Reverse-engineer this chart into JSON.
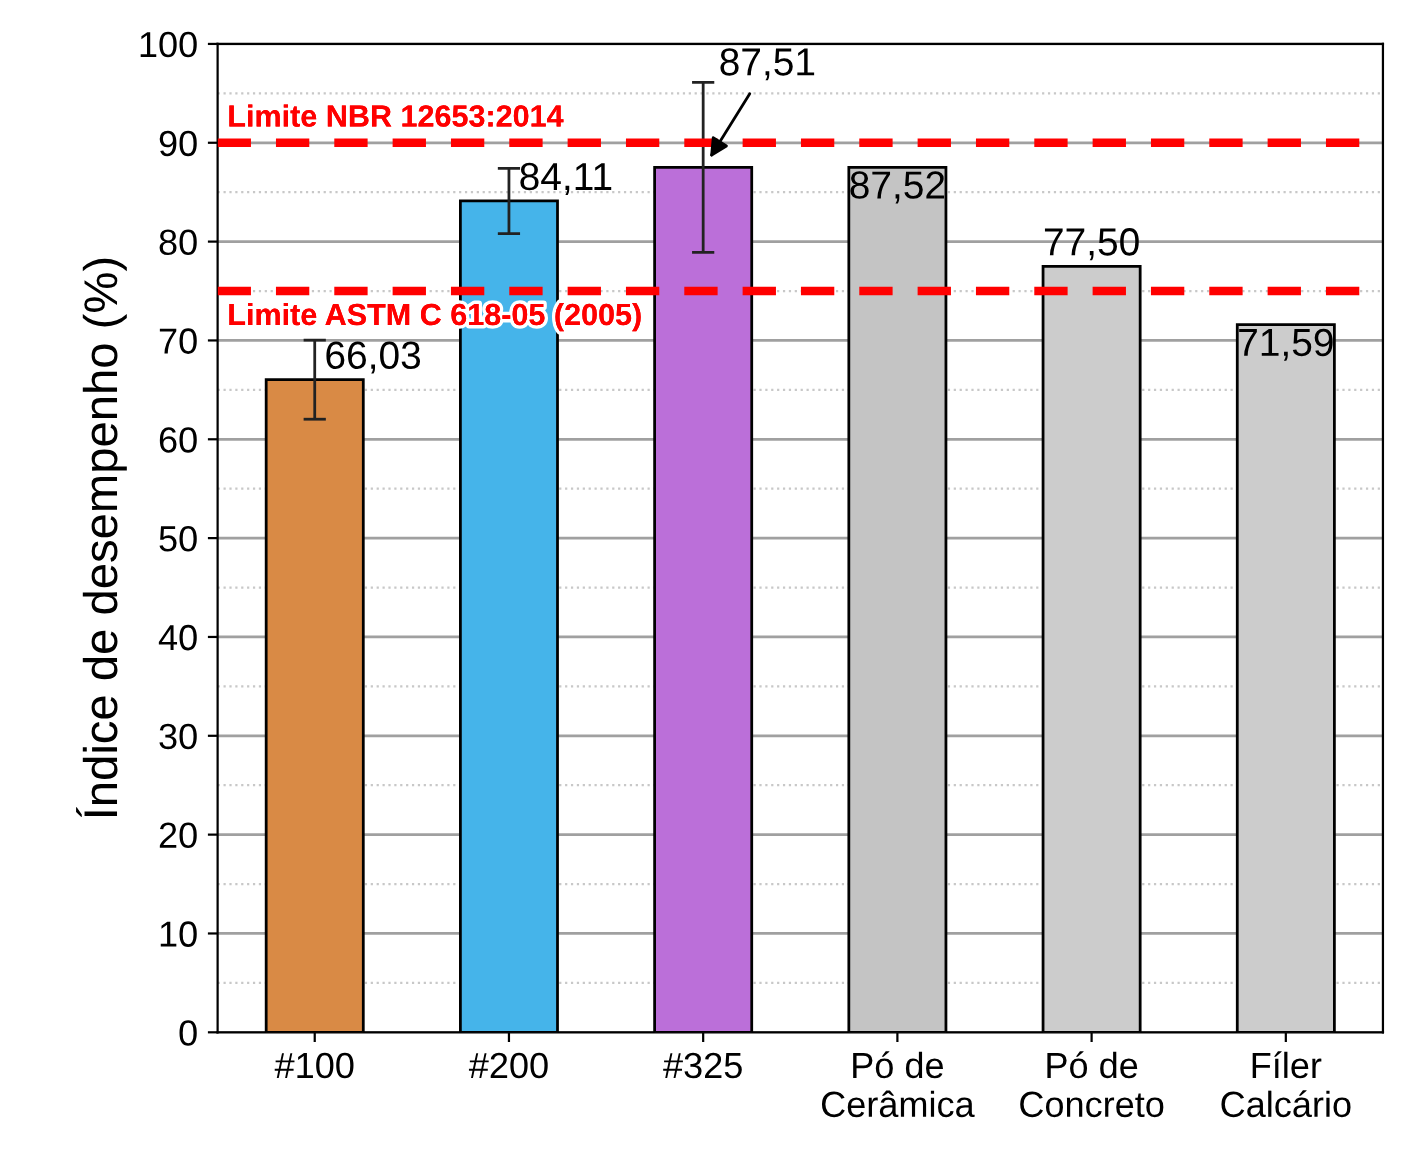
{
  "chart_data": {
    "type": "bar",
    "ylabel": "Índice de desempenho (%)",
    "categories": [
      "#100",
      "#200",
      "#325",
      "Pó de\nCerâmica",
      "Pó de\nConcreto",
      "Fíler\nCalcário"
    ],
    "values": [
      66.03,
      84.11,
      87.51,
      87.52,
      77.5,
      71.59
    ],
    "value_labels": [
      "66,03",
      "84,11",
      "87,51",
      "87,52",
      "77,50",
      "71,59"
    ],
    "errors": [
      4.0,
      3.3,
      8.6,
      null,
      null,
      null
    ],
    "colors": [
      "#d98a45",
      "#45b4ea",
      "#bb6fd9",
      "#c4c4c4",
      "#cccccc",
      "#cccccc"
    ],
    "ylim": [
      0,
      100
    ],
    "yticks": [
      0,
      10,
      20,
      30,
      40,
      50,
      60,
      70,
      80,
      90,
      100
    ],
    "grid": "y",
    "ref_lines": [
      {
        "axis": "y",
        "value": 90,
        "color": "#ff0000",
        "line_style": "dashed"
      },
      {
        "axis": "y",
        "value": 75,
        "color": "#ff0000",
        "line_style": "dashed"
      }
    ],
    "annotations": [
      "Limite NBR 12653:2014",
      "Limite ASTM C 618-05 (2005)"
    ]
  }
}
